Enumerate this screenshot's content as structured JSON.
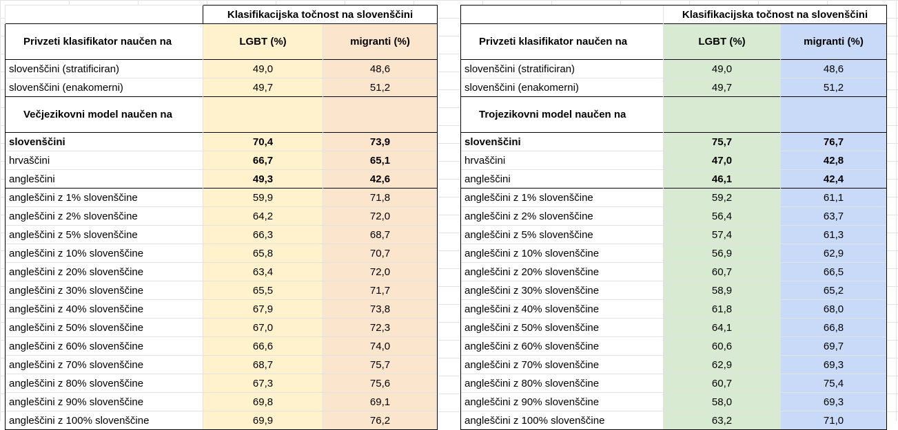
{
  "left": {
    "title": "Klasifikacijska točnost na slovenščini",
    "header1": "Privzeti klasifikator naučen na",
    "col_lgbt": "LGBT (%)",
    "col_migranti": "migranti (%)",
    "header2": "Večjezikovni model naučen na",
    "rows": [
      {
        "label": "slovenščini (stratificiran)",
        "lgbt": "49,0",
        "migranti": "48,6"
      },
      {
        "label": "slovenščini (enakomerni)",
        "lgbt": "49,7",
        "migranti": "51,2"
      },
      {
        "label": "slovenščini",
        "lgbt": "70,4",
        "migranti": "73,9"
      },
      {
        "label": "hrvaščini",
        "lgbt": "66,7",
        "migranti": "65,1"
      },
      {
        "label": "angleščini",
        "lgbt": "49,3",
        "migranti": "42,6"
      },
      {
        "label": "angleščini z 1% slovenščine",
        "lgbt": "59,9",
        "migranti": "71,8"
      },
      {
        "label": "angleščini z 2% slovenščine",
        "lgbt": "64,2",
        "migranti": "72,0"
      },
      {
        "label": "angleščini z 5% slovenščine",
        "lgbt": "66,3",
        "migranti": "68,7"
      },
      {
        "label": "angleščini z 10% slovenščine",
        "lgbt": "65,8",
        "migranti": "70,7"
      },
      {
        "label": "angleščini z 20% slovenščine",
        "lgbt": "63,4",
        "migranti": "72,0"
      },
      {
        "label": "angleščini z 30% slovenščine",
        "lgbt": "65,5",
        "migranti": "71,7"
      },
      {
        "label": "angleščini z 40% slovenščine",
        "lgbt": "67,9",
        "migranti": "73,8"
      },
      {
        "label": "angleščini z 50% slovenščine",
        "lgbt": "67,0",
        "migranti": "72,3"
      },
      {
        "label": "angleščini z 60% slovenščine",
        "lgbt": "66,6",
        "migranti": "74,0"
      },
      {
        "label": "angleščini z 70% slovenščine",
        "lgbt": "68,7",
        "migranti": "75,7"
      },
      {
        "label": "angleščini z 80% slovenščine",
        "lgbt": "67,3",
        "migranti": "75,6"
      },
      {
        "label": "angleščini z 90% slovenščine",
        "lgbt": "69,8",
        "migranti": "69,1"
      },
      {
        "label": "angleščini z 100% slovenščine",
        "lgbt": "69,9",
        "migranti": "76,2"
      }
    ],
    "colors": {
      "lgbt": "#fff2cc",
      "migranti": "#fce5cd"
    }
  },
  "right": {
    "title": "Klasifikacijska točnost na slovenščini",
    "header1": "Privzeti klasifikator naučen na",
    "col_lgbt": "LGBT (%)",
    "col_migranti": "migranti (%)",
    "header2": "Trojezikovni model naučen na",
    "rows": [
      {
        "label": "slovenščini (stratificiran)",
        "lgbt": "49,0",
        "migranti": "48,6"
      },
      {
        "label": "slovenščini (enakomerni)",
        "lgbt": "49,7",
        "migranti": "51,2"
      },
      {
        "label": "slovenščini",
        "lgbt": "75,7",
        "migranti": "76,7"
      },
      {
        "label": "hrvaščini",
        "lgbt": "47,0",
        "migranti": "42,8"
      },
      {
        "label": "angleščini",
        "lgbt": "46,1",
        "migranti": "42,4"
      },
      {
        "label": "angleščini z 1% slovenščine",
        "lgbt": "59,2",
        "migranti": "61,1"
      },
      {
        "label": "angleščini z 2% slovenščine",
        "lgbt": "56,4",
        "migranti": "63,7"
      },
      {
        "label": "angleščini z 5% slovenščine",
        "lgbt": "57,4",
        "migranti": "61,3"
      },
      {
        "label": "angleščini z 10% slovenščine",
        "lgbt": "56,9",
        "migranti": "62,9"
      },
      {
        "label": "angleščini z 20% slovenščine",
        "lgbt": "60,7",
        "migranti": "66,5"
      },
      {
        "label": "angleščini z 30% slovenščine",
        "lgbt": "58,9",
        "migranti": "65,2"
      },
      {
        "label": "angleščini z 40% slovenščine",
        "lgbt": "61,8",
        "migranti": "68,0"
      },
      {
        "label": "angleščini z 50% slovenščine",
        "lgbt": "64,1",
        "migranti": "66,8"
      },
      {
        "label": "angleščini z 60% slovenščine",
        "lgbt": "60,6",
        "migranti": "69,7"
      },
      {
        "label": "angleščini z 70% slovenščine",
        "lgbt": "62,9",
        "migranti": "69,3"
      },
      {
        "label": "angleščini z 80% slovenščine",
        "lgbt": "60,7",
        "migranti": "75,4"
      },
      {
        "label": "angleščini z 90% slovenščine",
        "lgbt": "58,0",
        "migranti": "69,3"
      },
      {
        "label": "angleščini z 100% slovenščine",
        "lgbt": "63,2",
        "migranti": "71,0"
      }
    ],
    "colors": {
      "lgbt": "#d9ead3",
      "migranti": "#c9daf8"
    }
  }
}
